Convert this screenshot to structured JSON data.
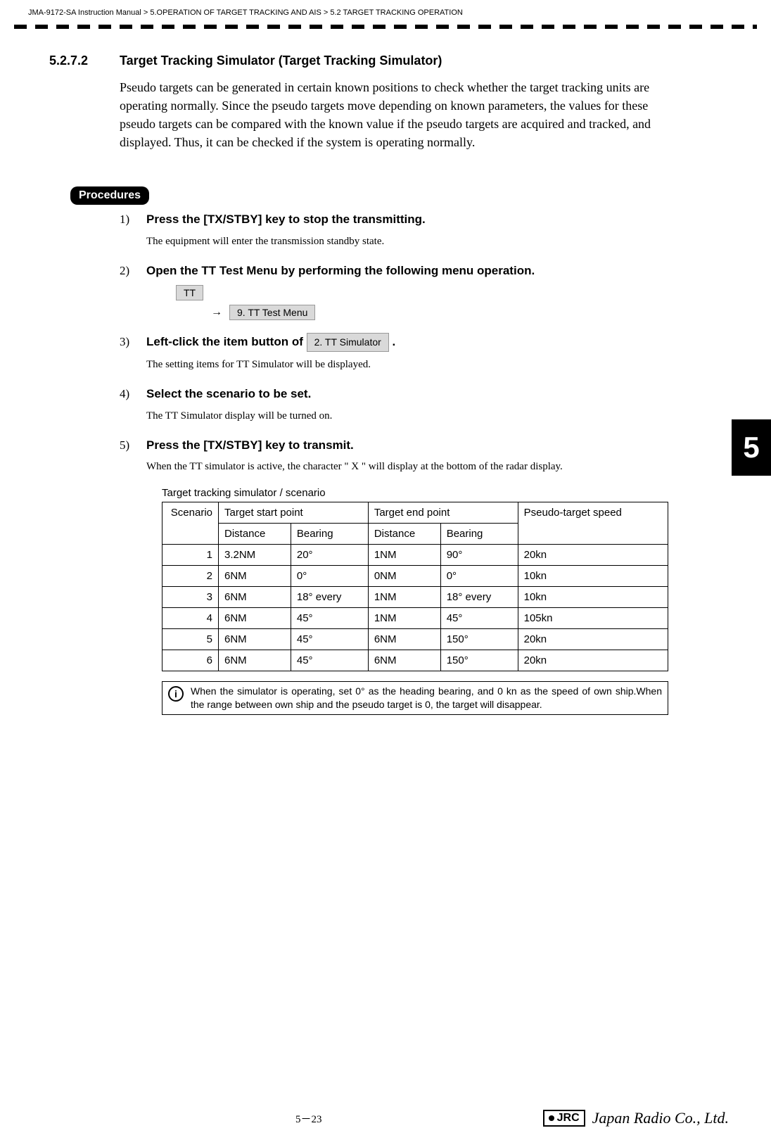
{
  "breadcrumb": "JMA-9172-SA Instruction Manual > 5.OPERATION OF TARGET TRACKING AND AIS > 5.2  TARGET TRACKING OPERATION",
  "section": {
    "number": "5.2.7.2",
    "title": "Target Tracking Simulator (Target Tracking Simulator)",
    "body": "Pseudo targets can be generated in certain known positions to check whether the target tracking units are operating normally. Since the pseudo targets move depending on known parameters, the values for these pseudo targets can be compared with the known value if the pseudo targets are acquired and tracked, and displayed.  Thus, it can be checked if the system is operating normally."
  },
  "procedures_label": "Procedures",
  "steps": [
    {
      "num": "1)",
      "title": " Press the [TX/STBY] key to stop the transmitting.",
      "body": "The equipment will enter the transmission standby state."
    },
    {
      "num": "2)",
      "title": "Open the TT Test Menu by performing the following menu operation.",
      "body": ""
    },
    {
      "num": "3)",
      "title_prefix": "Left-click the item button of ",
      "title_suffix": " .",
      "body": "The setting items for TT Simulator will be displayed."
    },
    {
      "num": "4)",
      "title": "Select the scenario to be set.",
      "body": "The TT Simulator display will be turned on."
    },
    {
      "num": "5)",
      "title": "Press the [TX/STBY] key to transmit.",
      "body": "When the TT simulator is active, the character \" X \" will display at the bottom of the radar display."
    }
  ],
  "menu_buttons": {
    "tt": "TT",
    "tt_test_menu": "9. TT Test Menu",
    "tt_simulator": "2. TT Simulator",
    "arrow": "→"
  },
  "table": {
    "caption": "Target tracking simulator / scenario",
    "headers": {
      "scenario": "Scenario",
      "start": "Target start point",
      "end": "Target end point",
      "speed": "Pseudo-target speed",
      "distance": "Distance",
      "bearing": "Bearing"
    },
    "rows": [
      {
        "sc": "1",
        "sd": "3.2NM",
        "sb": "20°",
        "ed": "1NM",
        "eb": "90°",
        "sp": "20kn"
      },
      {
        "sc": "2",
        "sd": "6NM",
        "sb": "0°",
        "ed": "0NM",
        "eb": "0°",
        "sp": "10kn"
      },
      {
        "sc": "3",
        "sd": "6NM",
        "sb": "18° every",
        "ed": "1NM",
        "eb": "18° every",
        "sp": "10kn"
      },
      {
        "sc": "4",
        "sd": "6NM",
        "sb": "45°",
        "ed": "1NM",
        "eb": "45°",
        "sp": "105kn"
      },
      {
        "sc": "5",
        "sd": "6NM",
        "sb": "45°",
        "ed": "6NM",
        "eb": "150°",
        "sp": "20kn"
      },
      {
        "sc": "6",
        "sd": "6NM",
        "sb": "45°",
        "ed": "6NM",
        "eb": "150°",
        "sp": "20kn"
      }
    ]
  },
  "info": {
    "icon": "i",
    "text": "When the simulator is operating, set 0° as the heading bearing, and 0 kn as the speed of own ship.When the range between own ship and the pseudo target is 0, the target will disappear."
  },
  "side_tab": "5",
  "footer": {
    "page": "5－23",
    "jrc": "JRC",
    "brand": "Japan Radio Co., Ltd."
  },
  "colors": {
    "button_bg": "#d9d9d9",
    "button_border": "#999999",
    "text": "#000000",
    "background": "#ffffff"
  }
}
